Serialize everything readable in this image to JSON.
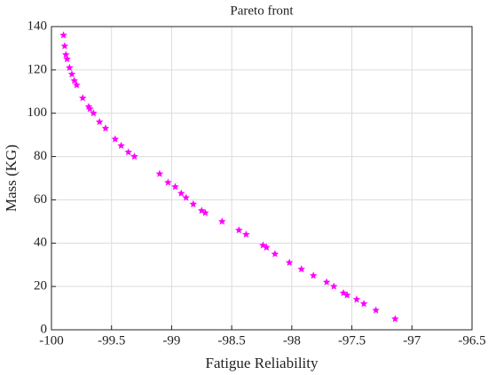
{
  "chart_data": {
    "type": "scatter",
    "title": "Pareto front",
    "xlabel": "Fatigue Reliability",
    "ylabel": "Mass (KG)",
    "x": [
      -99.9,
      -99.89,
      -99.88,
      -99.87,
      -99.85,
      -99.83,
      -99.81,
      -99.79,
      -99.74,
      -99.69,
      -99.68,
      -99.65,
      -99.6,
      -99.55,
      -99.47,
      -99.42,
      -99.36,
      -99.31,
      -99.1,
      -99.03,
      -98.97,
      -98.92,
      -98.88,
      -98.82,
      -98.75,
      -98.72,
      -98.58,
      -98.44,
      -98.38,
      -98.24,
      -98.21,
      -98.14,
      -98.02,
      -97.92,
      -97.82,
      -97.71,
      -97.65,
      -97.57,
      -97.54,
      -97.46,
      -97.4,
      -97.3,
      -97.14
    ],
    "values": [
      136,
      131,
      127,
      125,
      121,
      118,
      115,
      113,
      107,
      103,
      102,
      100,
      96,
      93,
      88,
      85,
      82,
      80,
      72,
      68,
      66,
      63,
      61,
      58,
      55,
      54,
      50,
      46,
      44,
      39,
      38,
      35,
      31,
      28,
      25,
      22,
      20,
      17,
      16,
      14,
      12,
      9,
      5
    ],
    "color": "#ff00ff",
    "xlim": [
      -100,
      -96.5
    ],
    "xticks": [
      -100,
      -99.5,
      -99,
      -98.5,
      -98,
      -97.5,
      -97,
      -96.5
    ],
    "ylim": [
      0,
      140
    ],
    "yticks": [
      0,
      20,
      40,
      60,
      80,
      100,
      120,
      140
    ],
    "grid": true
  }
}
